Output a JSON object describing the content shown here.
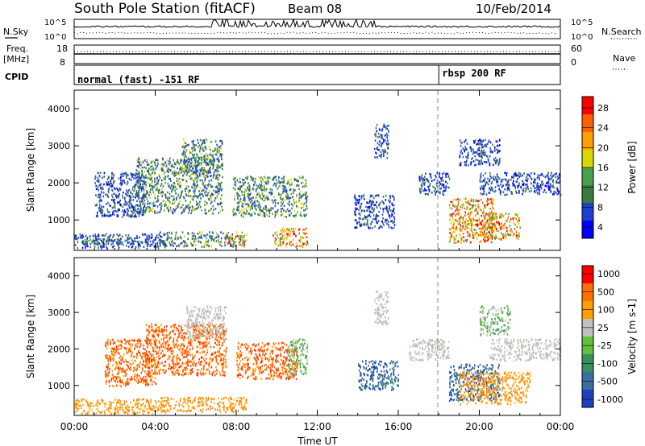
{
  "header": {
    "title": "South Pole Station (fitACF)",
    "beam": "Beam 08",
    "date": "10/Feb/2014"
  },
  "top_panels": {
    "nsky_label": "N.Sky",
    "nsearch_label": "N.Search",
    "noise_ticks": [
      "10^5",
      "10^0"
    ],
    "freq_label_line1": "Freq.",
    "freq_label_line2": "[MHz]",
    "freq_ticks": [
      "18",
      "8"
    ],
    "nave_label": "Nave",
    "nave_ticks": [
      "60",
      "0"
    ],
    "cpid_label": "CPID",
    "cpid_segments": [
      {
        "label": "normal (fast) -151 RF",
        "start_hour": 0
      },
      {
        "label": "rbsp 200 RF",
        "start_hour": 18
      }
    ]
  },
  "chart_data": [
    {
      "type": "heatmap",
      "quantity": "power",
      "ylabel": "Slant Range [km]",
      "xlabel": "",
      "x_ticks": [
        "00:00",
        "04:00",
        "08:00",
        "12:00",
        "16:00",
        "20:00",
        "00:00"
      ],
      "xlim_hours": [
        0,
        24
      ],
      "ylim_km": [
        180,
        4500
      ],
      "y_ticks": [
        1000,
        2000,
        3000,
        4000
      ],
      "colorbar": {
        "label": "Power [dB]",
        "ticks": [
          "28",
          "24",
          "20",
          "16",
          "12",
          "8",
          "4"
        ],
        "range": [
          0,
          30
        ],
        "colors": [
          "#0000ff",
          "#1f3fd0",
          "#3a7a3a",
          "#4aa04a",
          "#d8d800",
          "#ffa000",
          "#ff6000",
          "#ff0000"
        ]
      },
      "dashed_marker_hour": 17.95,
      "blobs": [
        {
          "t0": 0.0,
          "t1": 4.5,
          "r0": 250,
          "r1": 650,
          "level": "low"
        },
        {
          "t0": 0.3,
          "t1": 3.0,
          "r0": 350,
          "r1": 550,
          "level": "mid"
        },
        {
          "t0": 4.2,
          "t1": 8.5,
          "r0": 300,
          "r1": 700,
          "level": "mid"
        },
        {
          "t0": 7.5,
          "t1": 8.4,
          "r0": 350,
          "r1": 600,
          "level": "high"
        },
        {
          "t0": 1.0,
          "t1": 3.5,
          "r0": 1100,
          "r1": 2300,
          "level": "low"
        },
        {
          "t0": 3.0,
          "t1": 7.3,
          "r0": 1200,
          "r1": 2700,
          "level": "mid"
        },
        {
          "t0": 5.3,
          "t1": 7.3,
          "r0": 2300,
          "r1": 3200,
          "level": "mid"
        },
        {
          "t0": 7.8,
          "t1": 11.5,
          "r0": 1100,
          "r1": 2200,
          "level": "mid"
        },
        {
          "t0": 9.8,
          "t1": 11.5,
          "r0": 300,
          "r1": 800,
          "level": "high"
        },
        {
          "t0": 14.8,
          "t1": 15.5,
          "r0": 2700,
          "r1": 3600,
          "level": "low"
        },
        {
          "t0": 13.8,
          "t1": 15.8,
          "r0": 800,
          "r1": 1700,
          "level": "low"
        },
        {
          "t0": 17.0,
          "t1": 18.5,
          "r0": 1700,
          "r1": 2300,
          "level": "low"
        },
        {
          "t0": 18.5,
          "t1": 20.8,
          "r0": 400,
          "r1": 1600,
          "level": "high"
        },
        {
          "t0": 20.0,
          "t1": 22.0,
          "r0": 500,
          "r1": 1200,
          "level": "high"
        },
        {
          "t0": 20.0,
          "t1": 24.0,
          "r0": 1700,
          "r1": 2300,
          "level": "low"
        },
        {
          "t0": 19.0,
          "t1": 21.0,
          "r0": 2500,
          "r1": 3200,
          "level": "low"
        }
      ]
    },
    {
      "type": "heatmap",
      "quantity": "velocity",
      "ylabel": "Slant Range [km]",
      "xlabel": "Time UT",
      "x_ticks": [
        "00:00",
        "04:00",
        "08:00",
        "12:00",
        "16:00",
        "20:00",
        "00:00"
      ],
      "xlim_hours": [
        0,
        24
      ],
      "ylim_km": [
        180,
        4500
      ],
      "y_ticks": [
        1000,
        2000,
        3000,
        4000
      ],
      "colorbar": {
        "label": "Velocity [m s-1]",
        "ticks": [
          "1000",
          "500",
          "100",
          "25",
          "-25",
          "-100",
          "-500",
          "-1000"
        ],
        "colors": [
          "#2040c0",
          "#3a70a0",
          "#3a9060",
          "#60c040",
          "#c0c0c0",
          "#ffa000",
          "#ff7000",
          "#ff0000"
        ]
      },
      "dashed_marker_hour": 17.95,
      "blobs": [
        {
          "t0": 0.0,
          "t1": 4.5,
          "r0": 250,
          "r1": 650,
          "level": "orange"
        },
        {
          "t0": 4.2,
          "t1": 8.5,
          "r0": 300,
          "r1": 700,
          "level": "orange"
        },
        {
          "t0": 1.5,
          "t1": 4.0,
          "r0": 1000,
          "r1": 2300,
          "level": "red-orange"
        },
        {
          "t0": 3.5,
          "t1": 7.5,
          "r0": 1300,
          "r1": 2700,
          "level": "red-orange"
        },
        {
          "t0": 5.5,
          "t1": 7.5,
          "r0": 2300,
          "r1": 3200,
          "level": "grey"
        },
        {
          "t0": 8.0,
          "t1": 11.0,
          "r0": 1200,
          "r1": 2200,
          "level": "red-orange"
        },
        {
          "t0": 10.5,
          "t1": 11.5,
          "r0": 1300,
          "r1": 2300,
          "level": "green"
        },
        {
          "t0": 14.8,
          "t1": 15.5,
          "r0": 2700,
          "r1": 3600,
          "level": "grey"
        },
        {
          "t0": 14.0,
          "t1": 16.0,
          "r0": 900,
          "r1": 1700,
          "level": "blue"
        },
        {
          "t0": 16.5,
          "t1": 18.5,
          "r0": 1700,
          "r1": 2300,
          "level": "grey"
        },
        {
          "t0": 18.5,
          "t1": 21.0,
          "r0": 600,
          "r1": 1600,
          "level": "blue"
        },
        {
          "t0": 19.0,
          "t1": 22.5,
          "r0": 500,
          "r1": 1400,
          "level": "orange"
        },
        {
          "t0": 20.5,
          "t1": 24.0,
          "r0": 1700,
          "r1": 2300,
          "level": "grey"
        },
        {
          "t0": 20.0,
          "t1": 21.5,
          "r0": 2400,
          "r1": 3200,
          "level": "green"
        }
      ]
    }
  ]
}
